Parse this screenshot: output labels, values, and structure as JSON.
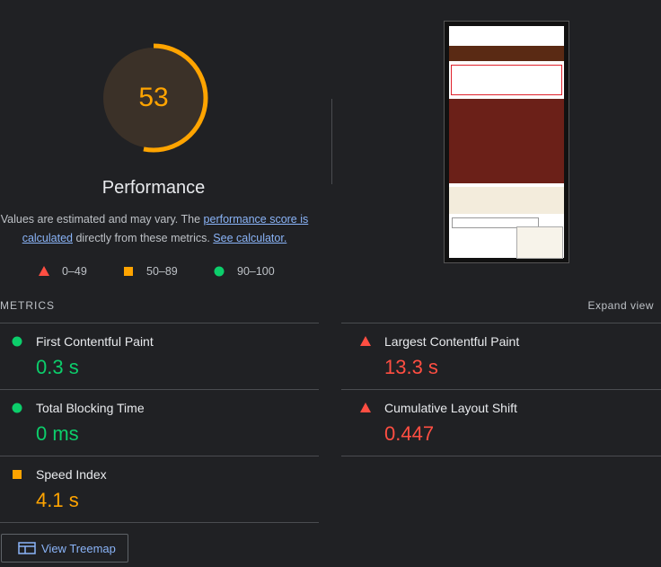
{
  "gauge": {
    "score": 53,
    "range": [
      0,
      100
    ],
    "color": "#ffa400",
    "label": "Performance"
  },
  "disclaimer": {
    "before": "Values are estimated and may vary. The ",
    "link1": "performance score is calculated",
    "middle": " directly from these metrics. ",
    "link2": "See calculator."
  },
  "legend": [
    {
      "shape": "triangle",
      "color": "#ff4e42",
      "label": "0–49"
    },
    {
      "shape": "square",
      "color": "#ffa400",
      "label": "50–89"
    },
    {
      "shape": "circle",
      "color": "#0cce6b",
      "label": "90–100"
    }
  ],
  "metrics": {
    "heading": "METRICS",
    "toggle": "Expand view",
    "items": [
      {
        "title": "First Contentful Paint",
        "value": "0.3 s",
        "shape": "circle",
        "color": "#0cce6b"
      },
      {
        "title": "Largest Contentful Paint",
        "value": "13.3 s",
        "shape": "triangle",
        "color": "#ff4e42"
      },
      {
        "title": "Total Blocking Time",
        "value": "0 ms",
        "shape": "circle",
        "color": "#0cce6b"
      },
      {
        "title": "Cumulative Layout Shift",
        "value": "0.447",
        "shape": "triangle",
        "color": "#ff4e42"
      },
      {
        "title": "Speed Index",
        "value": "4.1 s",
        "shape": "square",
        "color": "#ffa400"
      }
    ]
  },
  "button": "View Treemap"
}
